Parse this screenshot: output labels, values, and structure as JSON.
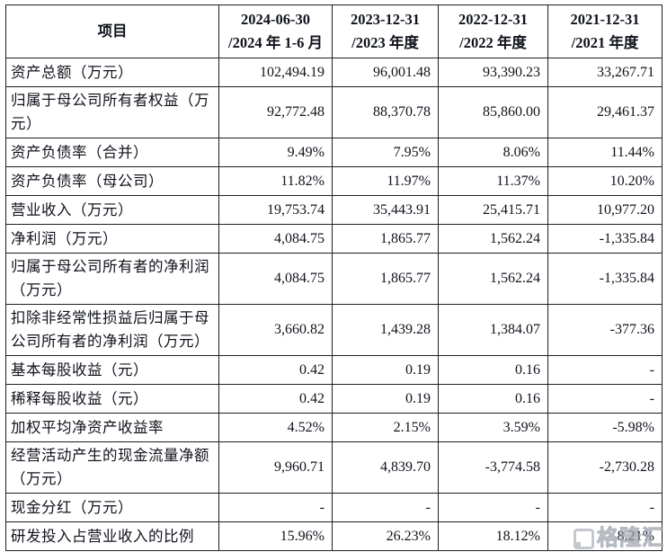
{
  "table": {
    "item_header": "项目",
    "columns": [
      {
        "line1": "2024-06-30",
        "line2": "/2024 年 1-6 月"
      },
      {
        "line1": "2023-12-31",
        "line2": "/2023 年度"
      },
      {
        "line1": "2022-12-31",
        "line2": "/2022 年度"
      },
      {
        "line1": "2021-12-31",
        "line2": "/2021 年度"
      }
    ],
    "rows": [
      {
        "label": "资产总额（万元）",
        "values": [
          "102,494.19",
          "96,001.48",
          "93,390.23",
          "33,267.71"
        ]
      },
      {
        "label": "归属于母公司所有者权益（万元）",
        "values": [
          "92,772.48",
          "88,370.78",
          "85,860.00",
          "29,461.37"
        ]
      },
      {
        "label": "资产负债率（合并）",
        "values": [
          "9.49%",
          "7.95%",
          "8.06%",
          "11.44%"
        ]
      },
      {
        "label": "资产负债率（母公司）",
        "values": [
          "11.82%",
          "11.97%",
          "11.37%",
          "10.20%"
        ]
      },
      {
        "label": "营业收入（万元）",
        "values": [
          "19,753.74",
          "35,443.91",
          "25,415.71",
          "10,977.20"
        ]
      },
      {
        "label": "净利润（万元）",
        "values": [
          "4,084.75",
          "1,865.77",
          "1,562.24",
          "-1,335.84"
        ]
      },
      {
        "label": "归属于母公司所有者的净利润（万元）",
        "values": [
          "4,084.75",
          "1,865.77",
          "1,562.24",
          "-1,335.84"
        ]
      },
      {
        "label": "扣除非经常性损益后归属于母公司所有者的净利润（万元）",
        "values": [
          "3,660.82",
          "1,439.28",
          "1,384.07",
          "-377.36"
        ]
      },
      {
        "label": "基本每股收益（元）",
        "values": [
          "0.42",
          "0.19",
          "0.16",
          "-"
        ]
      },
      {
        "label": "稀释每股收益（元）",
        "values": [
          "0.42",
          "0.19",
          "0.16",
          "-"
        ]
      },
      {
        "label": "加权平均净资产收益率",
        "values": [
          "4.52%",
          "2.15%",
          "3.59%",
          "-5.98%"
        ]
      },
      {
        "label": "经营活动产生的现金流量净额（万元）",
        "values": [
          "9,960.71",
          "4,839.70",
          "-3,774.58",
          "-2,730.28"
        ]
      },
      {
        "label": "现金分红（万元）",
        "values": [
          "-",
          "-",
          "-",
          "-"
        ]
      },
      {
        "label": "研发投入占营业收入的比例",
        "values": [
          "15.96%",
          "26.23%",
          "18.12%",
          "8.21%"
        ]
      }
    ]
  },
  "watermark": {
    "text": "格隆汇",
    "icon": "gelonghui-logo-icon",
    "color": "#b3b7c1"
  },
  "colors": {
    "border": "#1e1e22",
    "text": "#10131c",
    "background": "#ffffff"
  }
}
